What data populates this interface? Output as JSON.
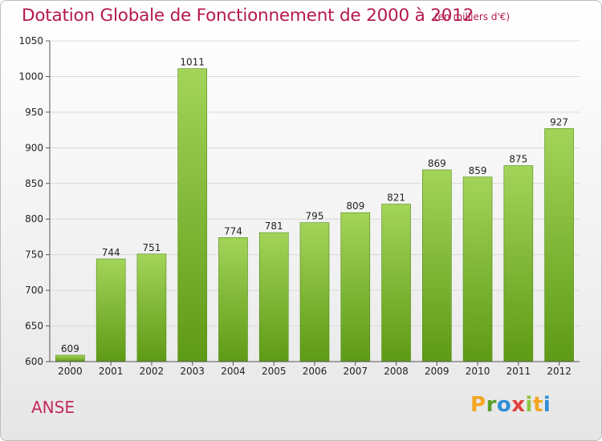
{
  "title": "Dotation Globale de Fonctionnement de 2000 à 2012",
  "unit_note": "(en milliers d'€)",
  "commune": "ANSE",
  "logo": {
    "letters": [
      "P",
      "r",
      "o",
      "x",
      "i",
      "t",
      "i"
    ],
    "colors": [
      "#f5a623",
      "#5aa02c",
      "#2e8fd6",
      "#e0413d",
      "#8cc63f",
      "#f5a623",
      "#2e8fd6"
    ]
  },
  "colors": {
    "bar_top": "#a3d45a",
    "bar_bottom": "#5e9a15",
    "title": "#b5184c"
  },
  "chart_data": {
    "type": "bar",
    "title": "Dotation Globale de Fonctionnement de 2000 à 2012",
    "categories": [
      "2000",
      "2001",
      "2002",
      "2003",
      "2004",
      "2005",
      "2006",
      "2007",
      "2008",
      "2009",
      "2010",
      "2011",
      "2012"
    ],
    "values": [
      609,
      744,
      751,
      1011,
      774,
      781,
      795,
      809,
      821,
      869,
      859,
      875,
      927
    ],
    "ylim": [
      600,
      1050
    ],
    "yticks": [
      600,
      650,
      700,
      750,
      800,
      850,
      900,
      950,
      1000,
      1050
    ],
    "grid": true,
    "legend": "none"
  }
}
